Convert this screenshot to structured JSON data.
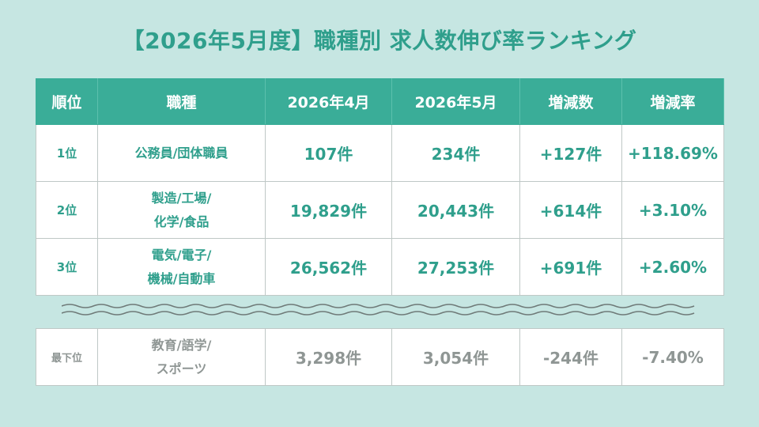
{
  "title": "【2026年5月度】職種別 求人数伸び率ランキング",
  "table": {
    "headers": [
      "順位",
      "職種",
      "2026年4月",
      "2026年5月",
      "増減数",
      "増減率"
    ],
    "rows": [
      {
        "rank": "1位",
        "job_lines": [
          "公務員/団体職員"
        ],
        "apr": "107件",
        "may": "234件",
        "diff": "+127件",
        "rate": "+118.69%"
      },
      {
        "rank": "2位",
        "job_lines": [
          "製造/工場/",
          "化学/食品"
        ],
        "apr": "19,829件",
        "may": "20,443件",
        "diff": "+614件",
        "rate": "+3.10%"
      },
      {
        "rank": "3位",
        "job_lines": [
          "電気/電子/",
          "機械/自動車"
        ],
        "apr": "26,562件",
        "may": "27,253件",
        "diff": "+691件",
        "rate": "+2.60%"
      }
    ],
    "last": {
      "rank": "最下位",
      "job_lines": [
        "教育/語学/",
        "スポーツ"
      ],
      "apr": "3,298件",
      "may": "3,054件",
      "diff": "-244件",
      "rate": "-7.40%"
    }
  },
  "colors": {
    "background": "#c6e6e2",
    "accent": "#3aad98",
    "title_text": "#2f9f8c",
    "muted_text": "#8f9694"
  }
}
